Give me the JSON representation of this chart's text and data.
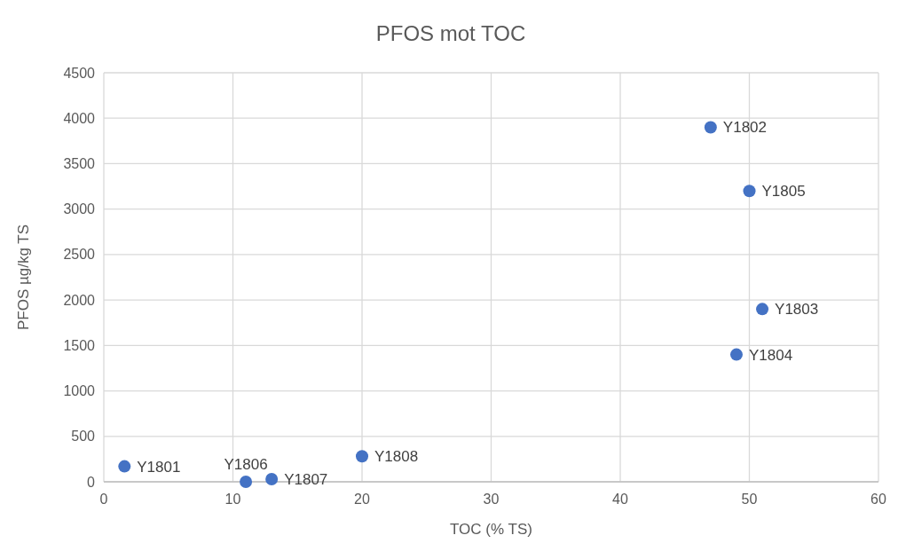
{
  "chart_data": {
    "type": "scatter",
    "title": "PFOS mot TOC",
    "xlabel": "TOC (% TS)",
    "ylabel": "PFOS µg/kg TS",
    "x": [
      1.6,
      47,
      51,
      49,
      50,
      11,
      13,
      20
    ],
    "series": [
      {
        "color": "#4472c4",
        "values": [
          170,
          3900,
          1900,
          1400,
          3200,
          0,
          30,
          280
        ]
      }
    ],
    "xlim": [
      0,
      60
    ],
    "xticks": [
      0,
      10,
      20,
      30,
      40,
      50,
      60
    ],
    "ylim": [
      0,
      4500
    ],
    "yticks": [
      0,
      500,
      1000,
      1500,
      2000,
      2500,
      3000,
      3500,
      4000,
      4500
    ],
    "grid": true,
    "marker": "circle",
    "annotations": [
      {
        "text": "Y1801",
        "x": 1.6,
        "y": 170
      },
      {
        "text": "Y1802",
        "x": 47,
        "y": 3900
      },
      {
        "text": "Y1803",
        "x": 51,
        "y": 1900
      },
      {
        "text": "Y1804",
        "x": 49,
        "y": 1400
      },
      {
        "text": "Y1805",
        "x": 50,
        "y": 3200
      },
      {
        "text": "Y1806",
        "x": 11,
        "y": 0
      },
      {
        "text": "Y1807",
        "x": 13,
        "y": 30
      },
      {
        "text": "Y1808",
        "x": 20,
        "y": 280
      }
    ]
  }
}
